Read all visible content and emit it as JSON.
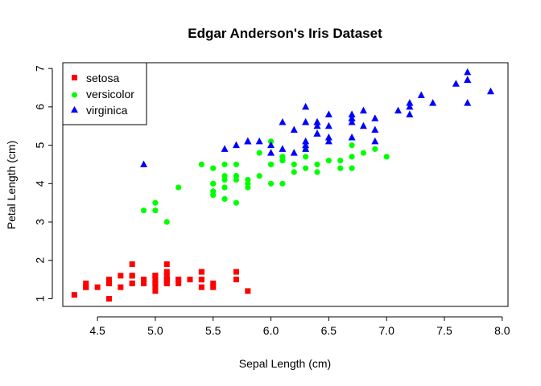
{
  "chart_data": {
    "type": "scatter",
    "title": "Edgar Anderson's Iris Dataset",
    "xlabel": "Sepal Length (cm)",
    "ylabel": "Petal Length (cm)",
    "xlim": [
      4.2,
      8.05
    ],
    "ylim": [
      0.8,
      7.15
    ],
    "x_ticks": [
      4.5,
      5.0,
      5.5,
      6.0,
      6.5,
      7.0,
      7.5,
      8.0
    ],
    "x_tick_labels": [
      "4.5",
      "5.0",
      "5.5",
      "6.0",
      "6.5",
      "7.0",
      "7.5",
      "8.0"
    ],
    "y_ticks": [
      1,
      2,
      3,
      4,
      5,
      6,
      7
    ],
    "y_tick_labels": [
      "1",
      "2",
      "3",
      "4",
      "5",
      "6",
      "7"
    ],
    "grid": false,
    "legend_position": "top-left",
    "series": [
      {
        "name": "setosa",
        "color": "#ff0000",
        "marker": "square",
        "points": [
          [
            5.1,
            1.4
          ],
          [
            4.9,
            1.4
          ],
          [
            4.7,
            1.3
          ],
          [
            4.6,
            1.5
          ],
          [
            5.0,
            1.4
          ],
          [
            5.4,
            1.7
          ],
          [
            4.6,
            1.4
          ],
          [
            5.0,
            1.5
          ],
          [
            4.4,
            1.4
          ],
          [
            4.9,
            1.5
          ],
          [
            5.4,
            1.5
          ],
          [
            4.8,
            1.6
          ],
          [
            4.8,
            1.4
          ],
          [
            4.3,
            1.1
          ],
          [
            5.8,
            1.2
          ],
          [
            5.7,
            1.5
          ],
          [
            5.4,
            1.3
          ],
          [
            5.1,
            1.4
          ],
          [
            5.7,
            1.7
          ],
          [
            5.1,
            1.5
          ],
          [
            5.4,
            1.7
          ],
          [
            5.1,
            1.5
          ],
          [
            4.6,
            1.0
          ],
          [
            5.1,
            1.7
          ],
          [
            4.8,
            1.9
          ],
          [
            5.0,
            1.6
          ],
          [
            5.0,
            1.6
          ],
          [
            5.2,
            1.5
          ],
          [
            5.2,
            1.4
          ],
          [
            4.7,
            1.6
          ],
          [
            4.8,
            1.6
          ],
          [
            5.4,
            1.5
          ],
          [
            5.2,
            1.5
          ],
          [
            5.5,
            1.4
          ],
          [
            4.9,
            1.5
          ],
          [
            5.0,
            1.2
          ],
          [
            5.5,
            1.3
          ],
          [
            4.9,
            1.4
          ],
          [
            4.4,
            1.3
          ],
          [
            5.1,
            1.5
          ],
          [
            5.0,
            1.3
          ],
          [
            4.5,
            1.3
          ],
          [
            4.4,
            1.3
          ],
          [
            5.0,
            1.6
          ],
          [
            5.1,
            1.9
          ],
          [
            4.8,
            1.4
          ],
          [
            5.1,
            1.6
          ],
          [
            4.6,
            1.4
          ],
          [
            5.3,
            1.5
          ],
          [
            5.0,
            1.4
          ]
        ]
      },
      {
        "name": "versicolor",
        "color": "#00ff00",
        "marker": "circle",
        "points": [
          [
            7.0,
            4.7
          ],
          [
            6.4,
            4.5
          ],
          [
            6.9,
            4.9
          ],
          [
            5.5,
            4.0
          ],
          [
            6.5,
            4.6
          ],
          [
            5.7,
            4.5
          ],
          [
            6.3,
            4.7
          ],
          [
            4.9,
            3.3
          ],
          [
            6.6,
            4.6
          ],
          [
            5.2,
            3.9
          ],
          [
            5.0,
            3.5
          ],
          [
            5.9,
            4.2
          ],
          [
            6.0,
            4.0
          ],
          [
            6.1,
            4.7
          ],
          [
            5.6,
            3.6
          ],
          [
            6.7,
            4.4
          ],
          [
            5.6,
            4.5
          ],
          [
            5.8,
            4.1
          ],
          [
            6.2,
            4.5
          ],
          [
            5.6,
            3.9
          ],
          [
            5.9,
            4.8
          ],
          [
            6.1,
            4.0
          ],
          [
            6.3,
            4.9
          ],
          [
            6.1,
            4.7
          ],
          [
            6.4,
            4.3
          ],
          [
            6.6,
            4.4
          ],
          [
            6.8,
            4.8
          ],
          [
            6.7,
            5.0
          ],
          [
            6.0,
            4.5
          ],
          [
            5.7,
            3.5
          ],
          [
            5.5,
            3.8
          ],
          [
            5.5,
            3.7
          ],
          [
            5.8,
            3.9
          ],
          [
            6.0,
            5.1
          ],
          [
            5.4,
            4.5
          ],
          [
            6.0,
            4.5
          ],
          [
            6.7,
            4.7
          ],
          [
            6.3,
            4.4
          ],
          [
            5.6,
            4.1
          ],
          [
            5.5,
            4.0
          ],
          [
            5.5,
            4.4
          ],
          [
            6.1,
            4.6
          ],
          [
            5.8,
            4.0
          ],
          [
            5.0,
            3.3
          ],
          [
            5.6,
            4.2
          ],
          [
            5.7,
            4.2
          ],
          [
            5.7,
            4.2
          ],
          [
            6.2,
            4.3
          ],
          [
            5.1,
            3.0
          ],
          [
            5.7,
            4.1
          ]
        ]
      },
      {
        "name": "virginica",
        "color": "#0000ff",
        "marker": "triangle",
        "points": [
          [
            6.3,
            6.0
          ],
          [
            5.8,
            5.1
          ],
          [
            7.1,
            5.9
          ],
          [
            6.3,
            5.6
          ],
          [
            6.5,
            5.8
          ],
          [
            7.6,
            6.6
          ],
          [
            4.9,
            4.5
          ],
          [
            7.3,
            6.3
          ],
          [
            6.7,
            5.8
          ],
          [
            7.2,
            6.1
          ],
          [
            6.5,
            5.1
          ],
          [
            6.4,
            5.3
          ],
          [
            6.8,
            5.5
          ],
          [
            5.7,
            5.0
          ],
          [
            5.8,
            5.1
          ],
          [
            6.4,
            5.3
          ],
          [
            6.5,
            5.5
          ],
          [
            7.7,
            6.7
          ],
          [
            7.7,
            6.9
          ],
          [
            6.0,
            5.0
          ],
          [
            6.9,
            5.7
          ],
          [
            5.6,
            4.9
          ],
          [
            7.7,
            6.7
          ],
          [
            6.3,
            4.9
          ],
          [
            6.7,
            5.7
          ],
          [
            7.2,
            6.0
          ],
          [
            6.2,
            4.8
          ],
          [
            6.1,
            4.9
          ],
          [
            6.4,
            5.6
          ],
          [
            7.2,
            5.8
          ],
          [
            7.4,
            6.1
          ],
          [
            7.9,
            6.4
          ],
          [
            6.4,
            5.6
          ],
          [
            6.3,
            5.1
          ],
          [
            6.1,
            5.6
          ],
          [
            7.7,
            6.1
          ],
          [
            6.3,
            5.6
          ],
          [
            6.4,
            5.5
          ],
          [
            6.0,
            4.8
          ],
          [
            6.9,
            5.4
          ],
          [
            6.7,
            5.6
          ],
          [
            6.9,
            5.1
          ],
          [
            5.8,
            5.1
          ],
          [
            6.8,
            5.9
          ],
          [
            6.7,
            5.7
          ],
          [
            6.7,
            5.2
          ],
          [
            6.3,
            5.0
          ],
          [
            6.5,
            5.2
          ],
          [
            6.2,
            5.4
          ],
          [
            5.9,
            5.1
          ]
        ]
      }
    ]
  }
}
